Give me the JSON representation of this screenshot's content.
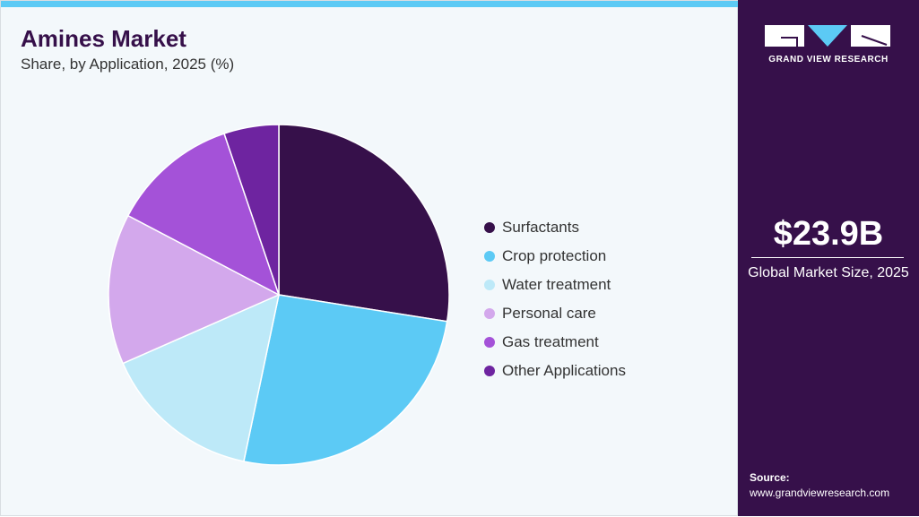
{
  "header": {
    "title": "Amines Market",
    "subtitle": "Share, by Application, 2025 (%)"
  },
  "sidebar": {
    "logo_text": "GRAND VIEW RESEARCH",
    "market_size": "$23.9B",
    "market_size_label": "Global Market Size, 2025",
    "source_label": "Source:",
    "source_url": "www.grandviewresearch.com"
  },
  "colors": {
    "accent": "#5ccaf5",
    "brand": "#36104a"
  },
  "chart_data": {
    "type": "pie",
    "title": "Amines Market",
    "subtitle": "Share, by Application, 2025 (%)",
    "legend_position": "right",
    "start_angle": "12 o'clock, clockwise",
    "categories": [
      "Surfactants",
      "Crop protection",
      "Water treatment",
      "Personal care",
      "Gas treatment",
      "Other Applications"
    ],
    "values": [
      27.5,
      25.8,
      15.1,
      14.3,
      12.1,
      5.2
    ],
    "colors": [
      "#36104a",
      "#5ccaf5",
      "#bde9f8",
      "#d3a8ec",
      "#a452d8",
      "#6e24a0"
    ]
  }
}
